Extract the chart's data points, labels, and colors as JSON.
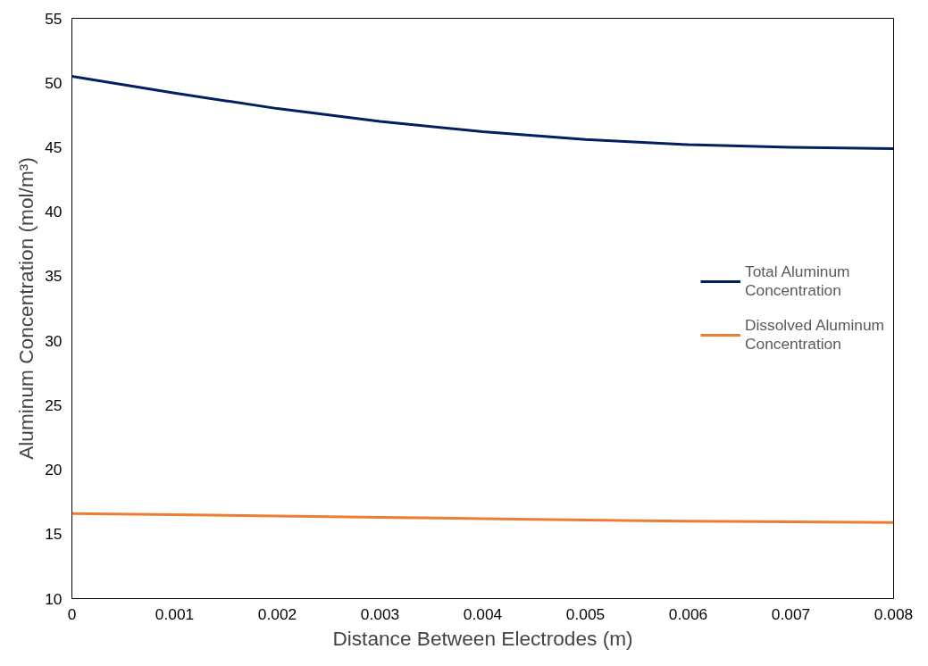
{
  "chart_data": {
    "type": "line",
    "xlabel": "Distance Between Electrodes (m)",
    "ylabel": "Aluminum Concentration (mol/m³)",
    "x": [
      0,
      0.001,
      0.002,
      0.003,
      0.004,
      0.005,
      0.006,
      0.007,
      0.008
    ],
    "series": [
      {
        "name": "Total Aluminum Concentration",
        "color": "#002060",
        "values": [
          50.5,
          49.2,
          48.0,
          47.0,
          46.2,
          45.6,
          45.2,
          45.0,
          44.9
        ]
      },
      {
        "name": "Dissolved Aluminum Concentration",
        "color": "#ed7d31",
        "values": [
          16.6,
          16.5,
          16.4,
          16.3,
          16.2,
          16.1,
          16.0,
          15.95,
          15.9
        ]
      }
    ],
    "xlim": [
      0,
      0.008
    ],
    "xticks": [
      0,
      0.001,
      0.002,
      0.003,
      0.004,
      0.005,
      0.006,
      0.007,
      0.008
    ],
    "ylim": [
      10,
      55
    ],
    "yticks": [
      10,
      15,
      20,
      25,
      30,
      35,
      40,
      45,
      50,
      55
    ],
    "grid": false,
    "legend": "right",
    "marker": "none",
    "line_style": "solid"
  }
}
